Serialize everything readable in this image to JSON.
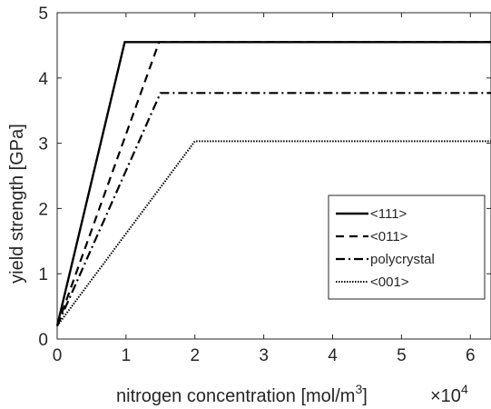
{
  "chart_data": {
    "type": "line",
    "xlabel": "nitrogen concentration [mol/m",
    "xlabel_superscript": "3",
    "xlabel_suffix": "]",
    "ylabel": "yield strength [GPa]",
    "x_multiplier": {
      "base": "×10",
      "exponent": "4"
    },
    "xlim": [
      0,
      6.3
    ],
    "ylim": [
      0,
      5
    ],
    "x_units_scale": 10000,
    "xticks": [
      0,
      1,
      2,
      3,
      4,
      5,
      6
    ],
    "yticks": [
      0,
      1,
      2,
      3,
      4,
      5
    ],
    "xtick_labels": [
      "0",
      "1",
      "2",
      "3",
      "4",
      "5",
      "6"
    ],
    "ytick_labels": [
      "0",
      "1",
      "2",
      "3",
      "4",
      "5"
    ],
    "grid": false,
    "legend_position": "center-right",
    "series": [
      {
        "name": "<111>",
        "style": "solid",
        "x": [
          0,
          0.98,
          6.3
        ],
        "y": [
          0.2,
          4.55,
          4.55
        ]
      },
      {
        "name": "<011>",
        "style": "dashed",
        "x": [
          0,
          1.48,
          6.3
        ],
        "y": [
          0.2,
          4.55,
          4.55
        ]
      },
      {
        "name": "polycrystal",
        "style": "dashdot",
        "x": [
          0,
          1.5,
          6.3
        ],
        "y": [
          0.2,
          3.77,
          3.77
        ]
      },
      {
        "name": "<001>",
        "style": "dotted",
        "x": [
          0,
          2.0,
          6.3
        ],
        "y": [
          0.2,
          3.03,
          3.03
        ]
      }
    ]
  }
}
